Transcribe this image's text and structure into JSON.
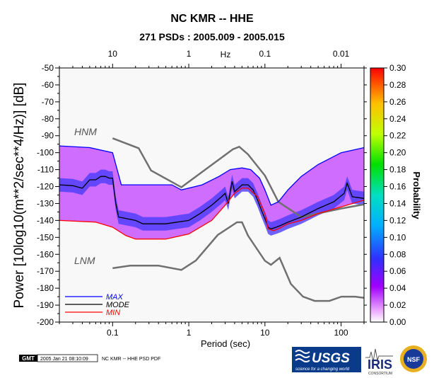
{
  "chart_data": {
    "type": "heatmap",
    "title": "NC KMR -- HHE",
    "subtitle": "271 PSDs : 2005.009 - 2005.015",
    "xlabel": "Period (sec)",
    "ylabel": "Power [10log10(m**2/sec**4/Hz)] [dB]",
    "top_axis_label": "Hz",
    "x_scale": "log",
    "xlim": [
      0.02,
      200
    ],
    "ylim": [
      -200,
      -50
    ],
    "x_ticks": [
      {
        "v": 0.1,
        "label": "0.1"
      },
      {
        "v": 1,
        "label": "1"
      },
      {
        "v": 10,
        "label": "10"
      },
      {
        "v": 100,
        "label": "100"
      }
    ],
    "y_ticks": [
      -50,
      -60,
      -70,
      -80,
      -90,
      -100,
      -110,
      -120,
      -130,
      -140,
      -150,
      -160,
      -170,
      -180,
      -190,
      -200
    ],
    "y_tick_labels": [
      "-50",
      "-60",
      "-70",
      "-80",
      "-90",
      "-100",
      "-110",
      "-120",
      "-130",
      "-140",
      "-150",
      "-160",
      "-170",
      "-180",
      "-190",
      "-200"
    ],
    "top_ticks": [
      {
        "v": 10,
        "label": "10"
      },
      {
        "v": 1,
        "label": "1"
      },
      {
        "v": 0.1,
        "label": "0.1"
      },
      {
        "v": 0.01,
        "label": "0.01"
      }
    ],
    "colorbar": {
      "label": "Probability",
      "range": [
        0,
        0.3
      ],
      "ticks": [
        "0.00",
        "0.02",
        "0.04",
        "0.06",
        "0.08",
        "0.10",
        "0.12",
        "0.14",
        "0.16",
        "0.18",
        "0.20",
        "0.22",
        "0.24",
        "0.26",
        "0.28",
        "0.30"
      ]
    },
    "models": [
      {
        "name": "HNM",
        "points": [
          [
            0.1,
            -91.5
          ],
          [
            0.22,
            -97.4
          ],
          [
            0.32,
            -110.5
          ],
          [
            0.8,
            -120.4
          ],
          [
            3.8,
            -98
          ],
          [
            4.6,
            -96.5
          ],
          [
            6,
            -101
          ],
          [
            10,
            -113.5
          ],
          [
            15,
            -129
          ],
          [
            30,
            -138
          ],
          [
            100,
            -133
          ],
          [
            200,
            -130.5
          ]
        ]
      },
      {
        "name": "LNM",
        "points": [
          [
            0.1,
            -168.2
          ],
          [
            0.17,
            -166.7
          ],
          [
            0.4,
            -166.7
          ],
          [
            0.8,
            -169.2
          ],
          [
            1.24,
            -163.7
          ],
          [
            2.4,
            -148.6
          ],
          [
            4.3,
            -141.1
          ],
          [
            5,
            -141.1
          ],
          [
            6,
            -149
          ],
          [
            10,
            -163.8
          ],
          [
            12,
            -166.2
          ],
          [
            15.6,
            -162.1
          ],
          [
            21.9,
            -177.5
          ],
          [
            31.6,
            -185
          ],
          [
            45,
            -187.5
          ],
          [
            70,
            -187.5
          ],
          [
            101,
            -185
          ],
          [
            154,
            -185
          ],
          [
            200,
            -185.7
          ]
        ]
      }
    ],
    "series": [
      {
        "name": "MAX",
        "color": "#0000ff",
        "points": [
          [
            0.02,
            -96
          ],
          [
            0.05,
            -97
          ],
          [
            0.1,
            -100
          ],
          [
            0.13,
            -119
          ],
          [
            0.3,
            -119
          ],
          [
            0.6,
            -119
          ],
          [
            0.8,
            -122
          ],
          [
            1.5,
            -119
          ],
          [
            2.5,
            -114
          ],
          [
            3.5,
            -110
          ],
          [
            5,
            -109
          ],
          [
            6.5,
            -110
          ],
          [
            8.5,
            -115
          ],
          [
            10,
            -122
          ],
          [
            12,
            -131
          ],
          [
            15,
            -129
          ],
          [
            20,
            -122
          ],
          [
            30,
            -114
          ],
          [
            50,
            -107
          ],
          [
            100,
            -100
          ],
          [
            160,
            -98
          ],
          [
            200,
            -97
          ]
        ]
      },
      {
        "name": "MODE",
        "color": "#000000",
        "points": [
          [
            0.02,
            -119
          ],
          [
            0.03,
            -119.5
          ],
          [
            0.04,
            -121
          ],
          [
            0.05,
            -116
          ],
          [
            0.06,
            -116
          ],
          [
            0.07,
            -114
          ],
          [
            0.08,
            -114
          ],
          [
            0.09,
            -115
          ],
          [
            0.1,
            -115
          ],
          [
            0.11,
            -130
          ],
          [
            0.12,
            -138
          ],
          [
            0.2,
            -140
          ],
          [
            0.25,
            -142
          ],
          [
            0.5,
            -142
          ],
          [
            0.7,
            -141
          ],
          [
            1,
            -140
          ],
          [
            1.4,
            -136
          ],
          [
            2,
            -131
          ],
          [
            2.7,
            -126
          ],
          [
            3,
            -124
          ],
          [
            3.3,
            -130
          ],
          [
            3.7,
            -117
          ],
          [
            4,
            -123
          ],
          [
            5,
            -119
          ],
          [
            6,
            -119
          ],
          [
            7,
            -122
          ],
          [
            8,
            -128
          ],
          [
            9,
            -134
          ],
          [
            10,
            -139
          ],
          [
            11,
            -144
          ],
          [
            12,
            -145
          ],
          [
            14,
            -144
          ],
          [
            16,
            -143
          ],
          [
            20,
            -141
          ],
          [
            30,
            -138
          ],
          [
            50,
            -133
          ],
          [
            80,
            -129
          ],
          [
            110,
            -124
          ],
          [
            120,
            -118
          ],
          [
            140,
            -126
          ],
          [
            200,
            -127
          ]
        ]
      },
      {
        "name": "MIN",
        "color": "#ff0000",
        "points": [
          [
            0.02,
            -140
          ],
          [
            0.06,
            -141
          ],
          [
            0.1,
            -144
          ],
          [
            0.15,
            -149
          ],
          [
            0.2,
            -151
          ],
          [
            0.5,
            -151
          ],
          [
            1,
            -148
          ],
          [
            2,
            -140
          ],
          [
            3,
            -131
          ],
          [
            4,
            -124
          ],
          [
            5,
            -121
          ],
          [
            6,
            -121
          ],
          [
            8,
            -126
          ],
          [
            10,
            -136
          ],
          [
            11,
            -145
          ],
          [
            13,
            -146
          ],
          [
            15,
            -145
          ],
          [
            20,
            -142
          ],
          [
            30,
            -140
          ],
          [
            50,
            -136
          ],
          [
            100,
            -132
          ],
          [
            200,
            -128
          ]
        ]
      }
    ],
    "legend": [
      "MAX",
      "MODE",
      "MIN"
    ],
    "legend_position": "bottom-left"
  },
  "footer": {
    "badge": "GMT",
    "timestamp": "2005 Jan 21 08:10:09",
    "caption": "NC KMR -- HHE PSD PDF"
  },
  "logos": [
    {
      "name": "usgs-logo",
      "text": "USGS",
      "tagline": "science for a changing world"
    },
    {
      "name": "iris-logo",
      "text": "IRIS",
      "tagline": "CONSORTIUM"
    },
    {
      "name": "nsf-logo",
      "text": "NSF"
    }
  ],
  "colors": {
    "max_line": "#0000ff",
    "mode_line": "#000000",
    "min_line": "#ff0000",
    "model_line": "#707070"
  }
}
